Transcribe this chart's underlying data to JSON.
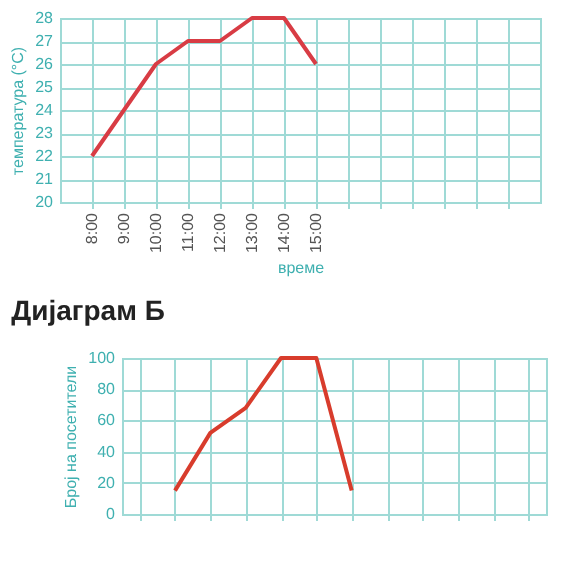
{
  "chart_data": [
    {
      "type": "line",
      "xlabel": "време",
      "ylabel": "температура (°C)",
      "x": [
        8,
        9,
        10,
        11,
        12,
        13,
        14,
        15
      ],
      "series": [
        {
          "color": "#d83c44",
          "values": [
            22,
            24,
            26,
            27,
            27,
            28,
            28,
            26
          ]
        }
      ],
      "xlim": [
        7,
        22
      ],
      "xticks": [
        {
          "value": 8,
          "label": "8:00"
        },
        {
          "value": 9,
          "label": "9:00"
        },
        {
          "value": 10,
          "label": "10:00"
        },
        {
          "value": 11,
          "label": "11:00"
        },
        {
          "value": 12,
          "label": "12:00"
        },
        {
          "value": 13,
          "label": "13:00"
        },
        {
          "value": 14,
          "label": "14:00"
        },
        {
          "value": 15,
          "label": "15:00"
        },
        {
          "value": 16,
          "label": null
        },
        {
          "value": 17,
          "label": null
        },
        {
          "value": 18,
          "label": null
        },
        {
          "value": 19,
          "label": null
        },
        {
          "value": 20,
          "label": null
        },
        {
          "value": 21,
          "label": null
        }
      ],
      "ylim": [
        20,
        28
      ],
      "yticks": [
        20,
        21,
        22,
        23,
        24,
        25,
        26,
        27,
        28
      ],
      "grid": true,
      "legend": false,
      "marker": "none"
    },
    {
      "type": "line",
      "title": "Дијаграм Б",
      "ylabel": "Број на посетители",
      "categories": [
        null,
        null,
        null,
        null,
        null,
        null,
        null,
        null,
        null,
        null,
        null,
        null
      ],
      "series": [
        {
          "color": "#d83c2c",
          "values": [
            null,
            15,
            52,
            68,
            100,
            100,
            15,
            null,
            null,
            null,
            null,
            null
          ]
        }
      ],
      "ylim": [
        0,
        100
      ],
      "yticks": [
        0,
        20,
        40,
        60,
        80,
        100
      ],
      "grid": true,
      "tick_labels": "y",
      "legend": false,
      "marker": "none"
    }
  ]
}
